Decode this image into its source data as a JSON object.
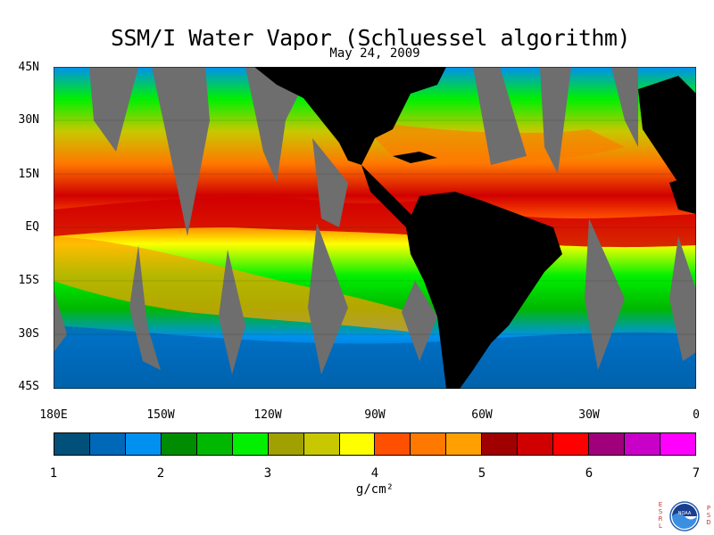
{
  "title": "SSM/I Water Vapor (Schluessel algorithm)",
  "date": "May 24, 2009",
  "lat_labels": [
    "45N",
    "30N",
    "15N",
    "EQ",
    "15S",
    "30S",
    "45S"
  ],
  "lon_labels": [
    "180E",
    "150W",
    "120W",
    "90W",
    "60W",
    "30W",
    "0"
  ],
  "colorbar": {
    "colors": [
      "#00507a",
      "#0068b8",
      "#0090f0",
      "#008c00",
      "#00b800",
      "#00f000",
      "#a0a000",
      "#c8c800",
      "#ffff00",
      "#ff5000",
      "#ff7800",
      "#ffa000",
      "#a00000",
      "#d00000",
      "#ff0000",
      "#a0007a",
      "#c800c8",
      "#ff00ff"
    ],
    "tick_labels": [
      "1",
      "2",
      "3",
      "4",
      "5",
      "6",
      "7"
    ],
    "units": "g/cm²"
  },
  "logo_left": [
    "E",
    "S",
    "R",
    "L"
  ],
  "logo_right": [
    "P",
    "S",
    "D"
  ],
  "logo_text": "NOAA",
  "colors": {
    "land": "#000000",
    "no_data": "#6e6e6e",
    "ocean_deep": "#00507a"
  }
}
